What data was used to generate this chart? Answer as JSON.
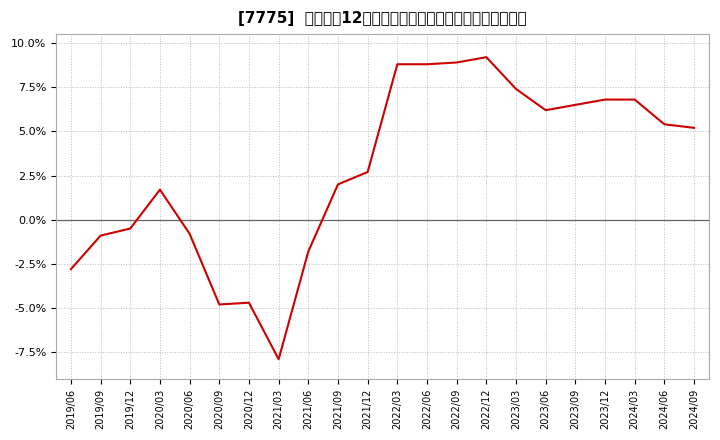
{
  "title": "[7775]  売上高の12か月移動合計の対前年同期増減率の推移",
  "line_color": "#cc0000",
  "background_color": "#ffffff",
  "plot_bg_color": "#ffffff",
  "grid_color": "#bbbbbb",
  "ylim": [
    -0.09,
    0.105
  ],
  "yticks": [
    -0.075,
    -0.05,
    -0.025,
    0.0,
    0.025,
    0.05,
    0.075,
    0.1
  ],
  "ytick_labels": [
    "-7.5%",
    "-5.0%",
    "-2.5%",
    "0.0%",
    "2.5%",
    "5.0%",
    "7.5%",
    "10.0%"
  ],
  "dates": [
    "2019/06",
    "2019/09",
    "2019/12",
    "2020/03",
    "2020/06",
    "2020/09",
    "2020/12",
    "2021/03",
    "2021/06",
    "2021/09",
    "2021/12",
    "2022/03",
    "2022/06",
    "2022/09",
    "2022/12",
    "2023/03",
    "2023/06",
    "2023/09",
    "2023/12",
    "2024/03",
    "2024/06",
    "2024/09"
  ],
  "values": [
    -0.028,
    -0.009,
    -0.005,
    0.017,
    -0.008,
    -0.048,
    -0.047,
    -0.079,
    -0.018,
    0.02,
    0.027,
    0.088,
    0.088,
    0.089,
    0.092,
    0.074,
    0.062,
    0.065,
    0.068,
    0.068,
    0.054,
    0.052
  ],
  "xtick_labels": [
    "2019/06",
    "2019/09",
    "2019/12",
    "2020/03",
    "2020/06",
    "2020/09",
    "2020/12",
    "2021/03",
    "2021/06",
    "2021/09",
    "2021/12",
    "2022/03",
    "2022/06",
    "2022/09",
    "2022/12",
    "2023/03",
    "2023/06",
    "2023/09",
    "2023/12",
    "2024/03",
    "2024/06",
    "2024/09"
  ],
  "title_fontsize": 11,
  "tick_fontsize": 8,
  "line_width": 1.5
}
